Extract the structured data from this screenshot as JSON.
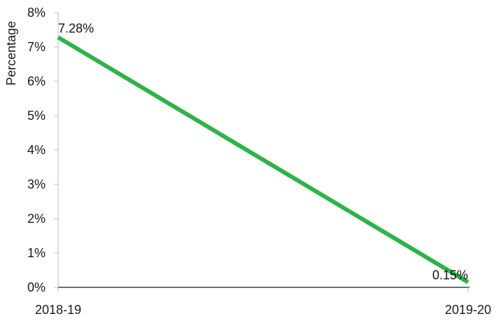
{
  "chart_data": {
    "type": "line",
    "title": "",
    "xlabel": "",
    "ylabel": "Percentage",
    "categories": [
      "2018-19",
      "2019-20"
    ],
    "series": [
      {
        "values": [
          7.28,
          0.15
        ],
        "data_labels": [
          "7.28%",
          "0.15%"
        ],
        "color": "#2db34a"
      }
    ],
    "ylim": [
      0,
      8
    ],
    "y_ticks": [
      0,
      1,
      2,
      3,
      4,
      5,
      6,
      7,
      8
    ],
    "y_tick_labels": [
      "0%",
      "1%",
      "2%",
      "3%",
      "4%",
      "5%",
      "6%",
      "7%",
      "8%"
    ],
    "grid": false,
    "legend": "none"
  },
  "colors": {
    "axis_line": "#bfbfbf",
    "baseline": "#404040",
    "series_line": "#2db34a"
  }
}
